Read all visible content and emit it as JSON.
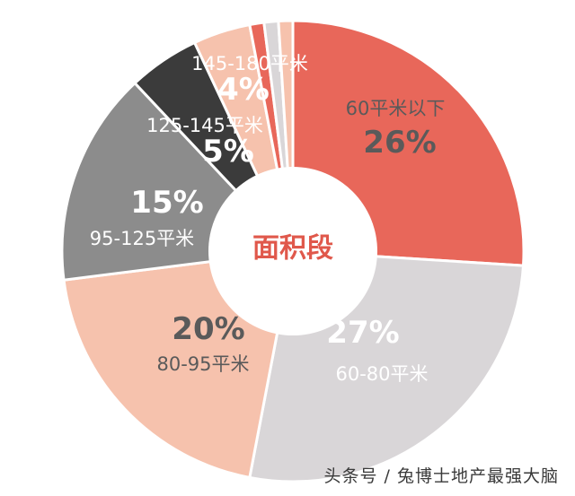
{
  "chart_data": {
    "type": "pie",
    "style": "donut",
    "center_label": "面积段",
    "slices": [
      {
        "label": "60平米以下",
        "value": 26,
        "display": "26%",
        "color": "#e8675a"
      },
      {
        "label": "60-80平米",
        "value": 27,
        "display": "27%",
        "color": "#d9d6d8"
      },
      {
        "label": "80-95平米",
        "value": 20,
        "display": "20%",
        "color": "#f6c2ad"
      },
      {
        "label": "95-125平米",
        "value": 15,
        "display": "15%",
        "color": "#8c8c8c"
      },
      {
        "label": "125-145平米",
        "value": 5,
        "display": "5%",
        "color": "#3b3b3b"
      },
      {
        "label": "145-180平米",
        "value": 4,
        "display": "4%",
        "color": "#f6c2ad"
      },
      {
        "label": "",
        "value": 1,
        "display": "",
        "color": "#e8675a"
      },
      {
        "label": "",
        "value": 1,
        "display": "",
        "color": "#d9d6d8"
      },
      {
        "label": "",
        "value": 1,
        "display": "",
        "color": "#f6c2ad"
      }
    ]
  },
  "watermark": "头条号 / 兔博士地产最强大脑"
}
